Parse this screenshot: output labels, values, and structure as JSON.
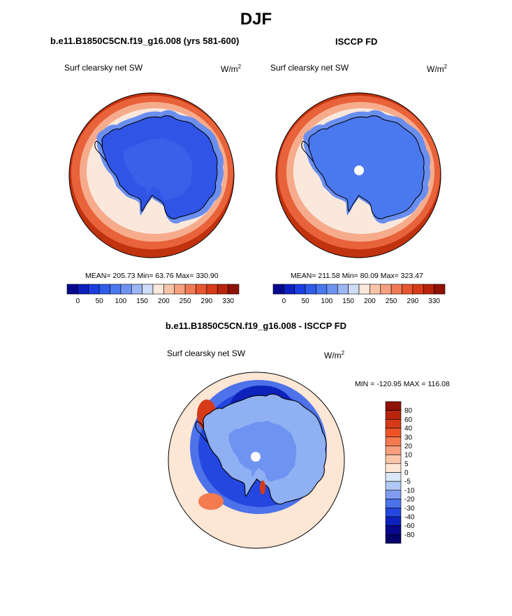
{
  "figure": {
    "season": "DJF",
    "panels": {
      "model": {
        "title": "b.e11.B1850C5CN.f19_g16.008 (yrs 581-600)",
        "variable": "Surf clearsky net SW",
        "units_base": "W/m",
        "units_exp": "2",
        "stats": "MEAN= 205.73  Min=  63.76  Max= 330.90"
      },
      "obs": {
        "title": "ISCCP FD",
        "variable": "Surf clearsky net SW",
        "units_base": "W/m",
        "units_exp": "2",
        "stats": "MEAN= 211.58  Min=  80.09  Max= 323.47"
      },
      "diff": {
        "title": "b.e11.B1850C5CN.f19_g16.008 - ISCCP FD",
        "variable": "Surf clearsky net SW",
        "units_base": "W/m",
        "units_exp": "2",
        "stats": "MIN = -120.95 MAX = 116.08"
      }
    }
  },
  "chart_data": [
    {
      "type": "heatmap",
      "projection": "south-polar-stereographic",
      "title": "b.e11.B1850C5CN.f19_g16.008 (yrs 581-600)",
      "variable": "Surf clearsky net SW",
      "units": "W/m2",
      "mean": 205.73,
      "min": 63.76,
      "max": 330.9,
      "colorbar_ticks": [
        "0",
        "50",
        "100",
        "150",
        "200",
        "250",
        "290",
        "330"
      ],
      "colorbar_colors": [
        "#08088c",
        "#0d1fbf",
        "#1a3ee0",
        "#2f5de8",
        "#4a78ee",
        "#6e93f0",
        "#9cb6f4",
        "#cfdcf8",
        "#fbe8dc",
        "#f8c4a8",
        "#f5a07e",
        "#f07a55",
        "#e85630",
        "#d63a18",
        "#b8240c",
        "#8e1205"
      ],
      "colors": {
        "ocean_far": "#c1320f",
        "ocean_mid": "#e8623a",
        "sea_ice": "#f6ac8c",
        "fringe": "#fae8dc",
        "ice_outer": "#6a8ef0",
        "continent": "#2f54e6",
        "continent_inner": "#3a60ea"
      }
    },
    {
      "type": "heatmap",
      "projection": "south-polar-stereographic",
      "title": "ISCCP FD",
      "variable": "Surf clearsky net SW",
      "units": "W/m2",
      "mean": 211.58,
      "min": 80.09,
      "max": 323.47,
      "colorbar_ticks": [
        "0",
        "50",
        "100",
        "150",
        "200",
        "250",
        "290",
        "330"
      ],
      "colorbar_colors": [
        "#08088c",
        "#0d1fbf",
        "#1a3ee0",
        "#2f5de8",
        "#4a78ee",
        "#6e93f0",
        "#9cb6f4",
        "#cfdcf8",
        "#fbe8dc",
        "#f8c4a8",
        "#f5a07e",
        "#f07a55",
        "#e85630",
        "#d63a18",
        "#b8240c",
        "#8e1205"
      ],
      "colors": {
        "ocean_far": "#c1320f",
        "ocean_mid": "#e8623a",
        "sea_ice": "#f6ac8c",
        "fringe": "#fae8dc",
        "ice_outer": "#6a8ef0",
        "continent": "#4a78ee",
        "pole_missing": "#ffffff"
      }
    },
    {
      "type": "heatmap",
      "projection": "south-polar-stereographic",
      "title": "b.e11.B1850C5CN.f19_g16.008 - ISCCP FD",
      "variable": "Surf clearsky net SW",
      "units": "W/m2",
      "min": -120.95,
      "max": 116.08,
      "colorbar_levels": [
        "80",
        "60",
        "40",
        "30",
        "20",
        "10",
        "5",
        "0",
        "-5",
        "-10",
        "-20",
        "-30",
        "-40",
        "-60",
        "-80"
      ],
      "colorbar_colors": [
        "#8e1205",
        "#b8240c",
        "#d63a18",
        "#ec5428",
        "#f47a50",
        "#f8a07e",
        "#fbc6aa",
        "#fde6d4",
        "#dce8f8",
        "#b2c8f4",
        "#7f9cf0",
        "#4d72ea",
        "#2447e0",
        "#0d22bb",
        "#08088c",
        "#03036a"
      ],
      "colors": {
        "ocean": "#fde6d4",
        "coast_band": "#2447e0",
        "continent": "#8fb0f2",
        "continent_bias": "#6e93f0"
      }
    }
  ]
}
